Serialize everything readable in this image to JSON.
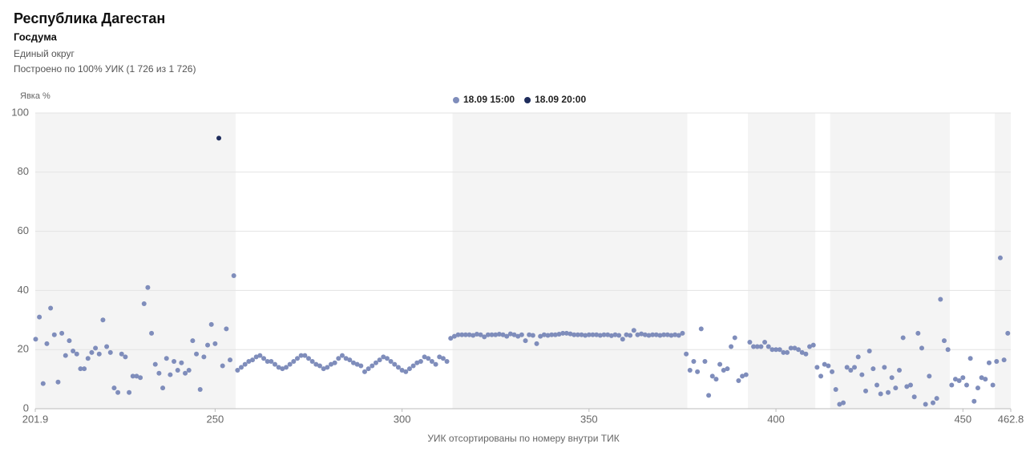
{
  "header": {
    "title": "Республика Дагестан",
    "subtitle": "Госдума",
    "district": "Единый округ",
    "note": "Построено по 100% УИК (1 726 из 1 726)"
  },
  "chart_data": {
    "type": "scatter",
    "y_label": "Явка %",
    "x_label": "УИК отсортированы по номеру внутри ТИК",
    "xlim": [
      201.9,
      462.8
    ],
    "ylim": [
      0,
      100
    ],
    "xticks": [
      201.9,
      250,
      300,
      350,
      400,
      450,
      462.8
    ],
    "yticks": [
      0,
      20,
      40,
      60,
      80,
      100
    ],
    "grid": true,
    "shaded_ranges": [
      [
        201.9,
        255.5
      ],
      [
        313.5,
        376.3
      ],
      [
        392.5,
        410.5
      ],
      [
        414.5,
        446.5
      ],
      [
        458.5,
        462.8
      ]
    ],
    "series": [
      {
        "name": "18.09 15:00",
        "color": "#7f8dbb",
        "x": [
          202,
          203,
          204,
          205,
          206,
          207,
          208,
          209,
          210,
          211,
          212,
          213,
          214,
          215,
          216,
          217,
          218,
          219,
          220,
          221,
          222,
          223,
          224,
          225,
          226,
          227,
          228,
          229,
          230,
          231,
          232,
          233,
          234,
          235,
          236,
          237,
          238,
          239,
          240,
          241,
          242,
          243,
          244,
          245,
          246,
          247,
          248,
          249,
          250,
          252,
          253,
          254,
          255,
          256,
          257,
          258,
          259,
          260,
          261,
          262,
          263,
          264,
          265,
          266,
          267,
          268,
          269,
          270,
          271,
          272,
          273,
          274,
          275,
          276,
          277,
          278,
          279,
          280,
          281,
          282,
          283,
          284,
          285,
          286,
          287,
          288,
          289,
          290,
          291,
          292,
          293,
          294,
          295,
          296,
          297,
          298,
          299,
          300,
          301,
          302,
          303,
          304,
          305,
          306,
          307,
          308,
          309,
          310,
          311,
          312,
          313,
          314,
          315,
          316,
          317,
          318,
          319,
          320,
          321,
          322,
          323,
          324,
          325,
          326,
          327,
          328,
          329,
          330,
          331,
          332,
          333,
          334,
          335,
          336,
          337,
          338,
          339,
          340,
          341,
          342,
          343,
          344,
          345,
          346,
          347,
          348,
          349,
          350,
          351,
          352,
          353,
          354,
          355,
          356,
          357,
          358,
          359,
          360,
          361,
          362,
          363,
          364,
          365,
          366,
          367,
          368,
          369,
          370,
          371,
          372,
          373,
          374,
          375,
          376,
          377,
          378,
          379,
          380,
          381,
          382,
          383,
          384,
          385,
          386,
          387,
          388,
          389,
          390,
          391,
          392,
          393,
          394,
          395,
          396,
          397,
          398,
          399,
          400,
          401,
          402,
          403,
          404,
          405,
          406,
          407,
          408,
          409,
          410,
          411,
          412,
          413,
          414,
          415,
          416,
          417,
          418,
          419,
          420,
          421,
          422,
          423,
          424,
          425,
          426,
          427,
          428,
          429,
          430,
          431,
          432,
          433,
          434,
          435,
          436,
          437,
          438,
          439,
          440,
          441,
          442,
          443,
          444,
          445,
          446,
          447,
          448,
          449,
          450,
          451,
          452,
          453,
          454,
          455,
          456,
          457,
          458,
          459,
          460,
          461,
          462
        ],
        "values": [
          23.5,
          31,
          8.5,
          22,
          34,
          25,
          9,
          25.5,
          18,
          23,
          19.5,
          18.5,
          13.5,
          13.5,
          17,
          19,
          20.5,
          18.5,
          30,
          21,
          19,
          7,
          5.5,
          18.5,
          17.5,
          5.5,
          11,
          11,
          10.5,
          35.5,
          41,
          25.5,
          15,
          12,
          7,
          17,
          11.5,
          16,
          13,
          15.5,
          12,
          13,
          23,
          18.5,
          6.5,
          17.5,
          21.5,
          28.5,
          22,
          14.5,
          27,
          16.5,
          45,
          13,
          14,
          15,
          16,
          16.5,
          17.5,
          18,
          17,
          16,
          16,
          15,
          14,
          13.5,
          14,
          15,
          16,
          17,
          18,
          18,
          17,
          16,
          15,
          14.5,
          13.5,
          14,
          15,
          15.5,
          17,
          18,
          17,
          16.5,
          15.5,
          15,
          14.5,
          12.5,
          13.5,
          14.5,
          15.5,
          16.5,
          17.5,
          17,
          16,
          15,
          14,
          13,
          12.5,
          13.5,
          14.5,
          15.5,
          16,
          17.5,
          17,
          16,
          15,
          17.5,
          17,
          16,
          23.8,
          24.5,
          25,
          25,
          25,
          25,
          24.8,
          25.2,
          25,
          24.3,
          25,
          25,
          25,
          25.2,
          25,
          24.5,
          25.3,
          25,
          24.5,
          25,
          23,
          25,
          24.8,
          22,
          24.5,
          25,
          24.8,
          25,
          25,
          25.2,
          25.5,
          25.5,
          25.3,
          25,
          25,
          25,
          24.8,
          25,
          25,
          25,
          24.8,
          25,
          25,
          24.7,
          25,
          24.8,
          23.5,
          25,
          24.8,
          26.5,
          25,
          25.3,
          25,
          24.8,
          25,
          25,
          24.8,
          25,
          25,
          24.8,
          25,
          24.8,
          25.5,
          18.5,
          13,
          16,
          12.5,
          27,
          16,
          4.5,
          11,
          10,
          15,
          13,
          13.5,
          21,
          24,
          9.5,
          11,
          11.5,
          22.5,
          21,
          21,
          21,
          22.5,
          21,
          20,
          20,
          20,
          19,
          19,
          20.5,
          20.5,
          20,
          19,
          18.5,
          21,
          21.5,
          14,
          11,
          15,
          14.5,
          12.5,
          6.5,
          1.5,
          2,
          14,
          13,
          14,
          17.5,
          11.5,
          6,
          19.5,
          13.5,
          8,
          5,
          14,
          5.5,
          10.5,
          7,
          13,
          24,
          7.5,
          8,
          4,
          25.5,
          20.5,
          1.5,
          11,
          2,
          3.5,
          37,
          23,
          20,
          8,
          10,
          9.5,
          10.5,
          8,
          17,
          2.5,
          7,
          10.5,
          10,
          15.5,
          8,
          16,
          51,
          16.5,
          25.5
        ]
      },
      {
        "name": "18.09 20:00",
        "color": "#1f2d5c",
        "x": [
          251
        ],
        "values": [
          91.5
        ]
      }
    ]
  }
}
